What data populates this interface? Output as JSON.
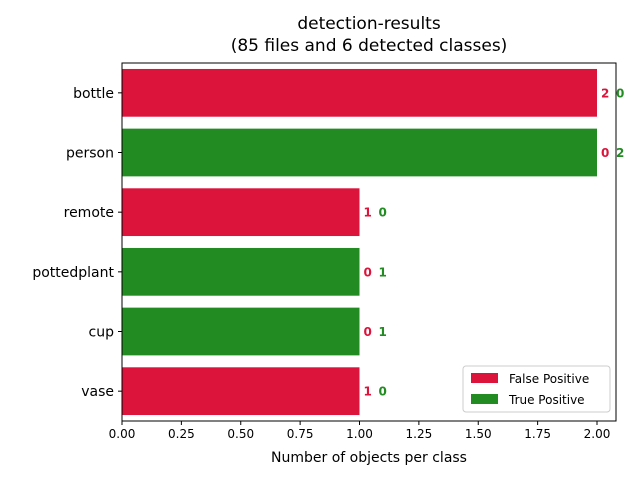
{
  "chart_data": {
    "type": "bar",
    "orientation": "horizontal",
    "stacked": true,
    "title": "detection-results",
    "subtitle": "(85 files and 6 detected classes)",
    "xlabel": "Number of objects per class",
    "ylabel": "",
    "xlim": [
      0,
      2.08
    ],
    "x_ticks": [
      "0.00",
      "0.25",
      "0.50",
      "0.75",
      "1.00",
      "1.25",
      "1.50",
      "1.75",
      "2.00"
    ],
    "categories": [
      "bottle",
      "person",
      "remote",
      "pottedplant",
      "cup",
      "vase"
    ],
    "series": [
      {
        "name": "False Positive",
        "color": "#dc143c",
        "values": [
          2,
          0,
          1,
          0,
          0,
          1
        ]
      },
      {
        "name": "True Positive",
        "color": "#228b22",
        "values": [
          0,
          2,
          0,
          1,
          1,
          0
        ]
      }
    ],
    "bar_labels": [
      {
        "fp": "2",
        "tp": "0"
      },
      {
        "fp": "0",
        "tp": "2"
      },
      {
        "fp": "1",
        "tp": "0"
      },
      {
        "fp": "0",
        "tp": "1"
      },
      {
        "fp": "0",
        "tp": "1"
      },
      {
        "fp": "1",
        "tp": "0"
      }
    ],
    "legend": {
      "placement": "lower-right",
      "entries": [
        "False Positive",
        "True Positive"
      ]
    },
    "grid": false
  }
}
